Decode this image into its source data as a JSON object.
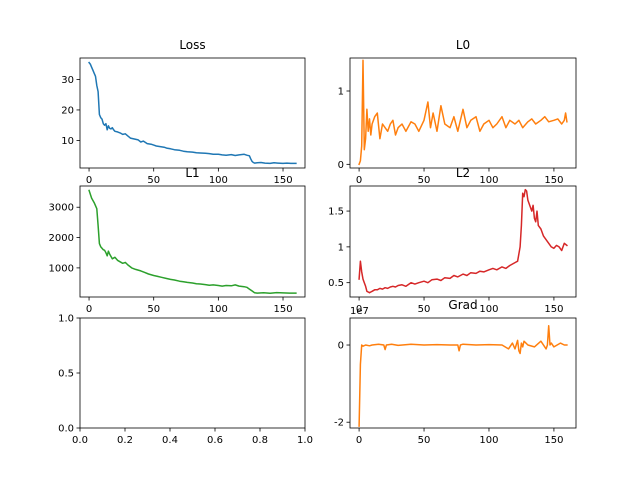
{
  "chart_data": [
    {
      "type": "line",
      "title": "Loss",
      "xlim": [
        -7,
        167
      ],
      "ylim": [
        1,
        37
      ],
      "xticks": [
        0,
        50,
        100,
        150
      ],
      "yticks": [
        10,
        20,
        30
      ],
      "color": "#1f77b4",
      "series": [
        {
          "x": [
            0,
            1,
            2,
            3,
            4,
            5,
            6,
            7,
            8,
            9,
            10,
            11,
            12,
            13,
            14,
            15,
            16,
            17,
            18,
            19,
            20,
            22,
            24,
            26,
            28,
            30,
            32,
            35,
            38,
            40,
            42,
            45,
            48,
            50,
            52,
            55,
            58,
            60,
            63,
            66,
            70,
            73,
            76,
            80,
            83,
            86,
            90,
            93,
            96,
            100,
            103,
            106,
            110,
            113,
            116,
            120,
            122,
            124,
            125,
            126,
            127,
            128,
            130,
            133,
            136,
            140,
            143,
            146,
            150,
            153,
            156,
            160
          ],
          "y": [
            35.5,
            35.0,
            34.0,
            33.0,
            32.0,
            31.0,
            28.0,
            26.0,
            18.5,
            17.5,
            17.0,
            15.5,
            15.0,
            15.5,
            13.5,
            14.8,
            14.0,
            13.8,
            14.2,
            13.5,
            13.0,
            12.8,
            12.5,
            12.0,
            12.2,
            11.5,
            10.8,
            10.5,
            10.2,
            9.5,
            9.8,
            9.0,
            8.8,
            8.5,
            8.2,
            8.0,
            7.8,
            7.5,
            7.3,
            7.0,
            6.8,
            6.5,
            6.3,
            6.2,
            6.0,
            5.9,
            5.8,
            5.7,
            5.5,
            5.5,
            5.3,
            5.2,
            5.4,
            5.1,
            5.3,
            5.5,
            5.2,
            5.0,
            4.0,
            3.2,
            2.8,
            2.6,
            2.7,
            2.8,
            2.6,
            2.5,
            2.7,
            2.6,
            2.5,
            2.6,
            2.5,
            2.5
          ]
        }
      ]
    },
    {
      "type": "line",
      "title": "L0",
      "xlim": [
        -7,
        167
      ],
      "ylim": [
        -0.05,
        1.45
      ],
      "xticks": [
        0,
        50,
        100,
        150
      ],
      "yticks": [
        0,
        1
      ],
      "color": "#ff7f0e",
      "series": [
        {
          "x": [
            0,
            1,
            2,
            3,
            4,
            5,
            6,
            7,
            8,
            9,
            10,
            12,
            14,
            16,
            18,
            20,
            22,
            24,
            26,
            28,
            30,
            33,
            36,
            40,
            43,
            46,
            50,
            53,
            55,
            57,
            60,
            63,
            66,
            70,
            73,
            76,
            80,
            83,
            86,
            90,
            93,
            96,
            100,
            103,
            106,
            110,
            113,
            116,
            120,
            123,
            126,
            130,
            133,
            136,
            140,
            143,
            146,
            150,
            153,
            156,
            158,
            159,
            160
          ],
          "y": [
            0.0,
            0.05,
            0.25,
            1.42,
            0.2,
            0.35,
            0.75,
            0.45,
            0.62,
            0.4,
            0.55,
            0.65,
            0.7,
            0.35,
            0.55,
            0.5,
            0.45,
            0.55,
            0.6,
            0.4,
            0.5,
            0.55,
            0.45,
            0.58,
            0.55,
            0.45,
            0.6,
            0.85,
            0.5,
            0.7,
            0.45,
            0.8,
            0.55,
            0.5,
            0.65,
            0.45,
            0.75,
            0.5,
            0.6,
            0.65,
            0.45,
            0.55,
            0.6,
            0.5,
            0.55,
            0.65,
            0.5,
            0.6,
            0.55,
            0.6,
            0.5,
            0.58,
            0.62,
            0.55,
            0.6,
            0.65,
            0.58,
            0.6,
            0.62,
            0.55,
            0.6,
            0.7,
            0.58
          ]
        }
      ]
    },
    {
      "type": "line",
      "title": "L1",
      "xlim": [
        -7,
        167
      ],
      "ylim": [
        40,
        3700
      ],
      "xticks": [
        0,
        50,
        100,
        150
      ],
      "yticks": [
        1000,
        2000,
        3000
      ],
      "color": "#2ca02c",
      "series": [
        {
          "x": [
            0,
            2,
            4,
            5,
            6,
            7,
            8,
            9,
            10,
            11,
            12,
            13,
            14,
            15,
            16,
            18,
            20,
            22,
            24,
            26,
            28,
            30,
            33,
            36,
            40,
            43,
            46,
            50,
            53,
            56,
            60,
            63,
            66,
            70,
            73,
            76,
            80,
            83,
            86,
            90,
            93,
            96,
            100,
            103,
            106,
            110,
            113,
            116,
            120,
            122,
            124,
            126,
            128,
            130,
            135,
            140,
            145,
            150,
            155,
            160
          ],
          "y": [
            3550,
            3300,
            3150,
            3050,
            2950,
            2400,
            1800,
            1700,
            1650,
            1600,
            1580,
            1500,
            1400,
            1550,
            1450,
            1300,
            1350,
            1250,
            1200,
            1150,
            1180,
            1100,
            1000,
            950,
            900,
            850,
            800,
            750,
            720,
            690,
            650,
            620,
            600,
            560,
            540,
            520,
            500,
            480,
            470,
            450,
            430,
            440,
            420,
            400,
            420,
            410,
            440,
            400,
            380,
            360,
            300,
            240,
            180,
            170,
            180,
            165,
            185,
            175,
            170,
            170
          ]
        }
      ]
    },
    {
      "type": "line",
      "title": "L2",
      "xlim": [
        -7,
        167
      ],
      "ylim": [
        0.3,
        1.85
      ],
      "xticks": [
        0,
        50,
        100,
        150
      ],
      "yticks": [
        0.5,
        1.0,
        1.5
      ],
      "color": "#d62728",
      "series": [
        {
          "x": [
            0,
            1,
            2,
            3,
            4,
            5,
            6,
            7,
            8,
            9,
            10,
            12,
            14,
            16,
            18,
            20,
            22,
            24,
            26,
            28,
            30,
            33,
            36,
            40,
            43,
            46,
            50,
            53,
            56,
            60,
            63,
            66,
            70,
            73,
            76,
            80,
            83,
            86,
            90,
            93,
            96,
            100,
            103,
            106,
            110,
            113,
            116,
            120,
            122,
            124,
            125,
            126,
            127,
            128,
            129,
            130,
            131,
            132,
            133,
            134,
            135,
            136,
            137,
            138,
            140,
            142,
            144,
            146,
            148,
            150,
            152,
            154,
            156,
            158,
            160
          ],
          "y": [
            0.55,
            0.8,
            0.65,
            0.55,
            0.5,
            0.45,
            0.38,
            0.37,
            0.36,
            0.37,
            0.38,
            0.4,
            0.4,
            0.42,
            0.41,
            0.43,
            0.42,
            0.44,
            0.45,
            0.44,
            0.46,
            0.47,
            0.45,
            0.5,
            0.48,
            0.5,
            0.52,
            0.5,
            0.54,
            0.55,
            0.53,
            0.57,
            0.56,
            0.6,
            0.58,
            0.62,
            0.6,
            0.64,
            0.63,
            0.66,
            0.65,
            0.68,
            0.7,
            0.68,
            0.72,
            0.7,
            0.74,
            0.78,
            0.8,
            1.0,
            1.3,
            1.75,
            1.7,
            1.8,
            1.78,
            1.65,
            1.6,
            1.55,
            1.5,
            1.58,
            1.4,
            1.35,
            1.5,
            1.3,
            1.25,
            1.15,
            1.1,
            1.05,
            1.0,
            0.98,
            1.02,
            1.0,
            0.95,
            1.05,
            1.02
          ]
        }
      ]
    },
    {
      "type": "line",
      "title": "",
      "xlim": [
        0,
        1
      ],
      "ylim": [
        0,
        1
      ],
      "xticks": [
        0.0,
        0.2,
        0.4,
        0.6,
        0.8,
        1.0
      ],
      "xtick_labels": [
        "0.0",
        "0.2",
        "0.4",
        "0.6",
        "0.8",
        "1.0"
      ],
      "yticks": [
        0.0,
        0.5,
        1.0
      ],
      "ytick_labels": [
        "0.0",
        "0.5",
        "1.0"
      ],
      "color": "#1f77b4",
      "series": []
    },
    {
      "type": "line",
      "title": "Grad",
      "offset_label": "1e7",
      "xlim": [
        -7,
        167
      ],
      "ylim": [
        -2.15,
        0.7
      ],
      "xticks": [
        0,
        50,
        100,
        150
      ],
      "yticks": [
        -2,
        0
      ],
      "color": "#ff7f0e",
      "series": [
        {
          "x": [
            0,
            1,
            2,
            3,
            5,
            8,
            10,
            15,
            19,
            20,
            21,
            25,
            30,
            40,
            50,
            60,
            70,
            76,
            77,
            78,
            80,
            90,
            100,
            110,
            115,
            118,
            120,
            122,
            123,
            124,
            125,
            126,
            127,
            130,
            135,
            140,
            144,
            145,
            146,
            147,
            148,
            150,
            155,
            158,
            160
          ],
          "y": [
            -2.1,
            -0.5,
            0.0,
            -0.03,
            0.0,
            -0.02,
            0.0,
            0.02,
            0.0,
            -0.12,
            0.0,
            0.02,
            -0.01,
            0.02,
            0.0,
            0.01,
            0.0,
            0.0,
            -0.15,
            0.0,
            0.02,
            0.0,
            0.01,
            0.0,
            -0.1,
            0.05,
            -0.1,
            0.12,
            -0.15,
            -0.22,
            0.05,
            -0.05,
            0.1,
            0.0,
            -0.05,
            0.1,
            -0.1,
            0.0,
            0.5,
            0.0,
            0.05,
            -0.05,
            0.05,
            0.0,
            0.0
          ]
        }
      ]
    }
  ]
}
